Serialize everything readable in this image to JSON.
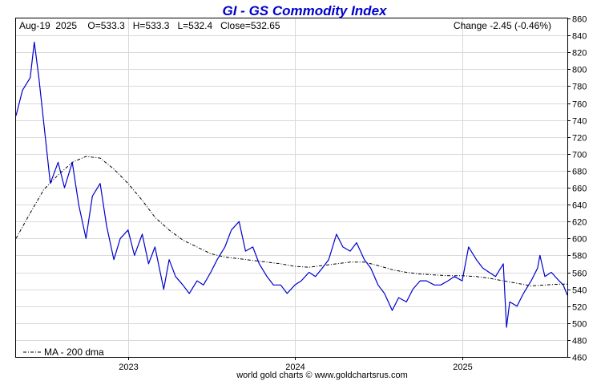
{
  "title": "GI  -  GS Commodity Index",
  "header": {
    "ohlc": "Aug-19  2025    O=533.3   H=533.3   L=532.4   Close=532.65",
    "change": "Change -2.45 (-0.46%)"
  },
  "legend": "MA - 200 dma",
  "footer": "world gold charts © www.goldchartsrus.com",
  "colors": {
    "title": "#0000cc",
    "price_line": "#0000cc",
    "ma_line": "#000000",
    "grid": "#d9d9d9",
    "frame": "#000000"
  },
  "chart_data": {
    "type": "line",
    "title": "GI  -  GS Commodity Index",
    "ylim": [
      460,
      860
    ],
    "y_ticks": [
      460,
      480,
      500,
      520,
      540,
      560,
      580,
      600,
      620,
      640,
      660,
      680,
      700,
      720,
      740,
      760,
      780,
      800,
      820,
      840,
      860
    ],
    "x_range": [
      "2022-05-01",
      "2025-08-19"
    ],
    "x_ticks": [
      {
        "date": "2023-01-01",
        "label": "2023"
      },
      {
        "date": "2024-01-01",
        "label": "2024"
      },
      {
        "date": "2025-01-01",
        "label": "2025"
      }
    ],
    "grid": true,
    "legend_position": "bottom-left",
    "y_axis_position": "right",
    "series": [
      {
        "name": "GI",
        "x": [
          "2022-05-01",
          "2022-05-15",
          "2022-06-01",
          "2022-06-10",
          "2022-06-20",
          "2022-07-01",
          "2022-07-15",
          "2022-08-01",
          "2022-08-15",
          "2022-09-01",
          "2022-09-15",
          "2022-10-01",
          "2022-10-15",
          "2022-11-01",
          "2022-11-15",
          "2022-12-01",
          "2022-12-15",
          "2023-01-01",
          "2023-01-15",
          "2023-02-01",
          "2023-02-15",
          "2023-03-01",
          "2023-03-20",
          "2023-04-01",
          "2023-04-15",
          "2023-05-01",
          "2023-05-15",
          "2023-06-01",
          "2023-06-15",
          "2023-07-01",
          "2023-07-15",
          "2023-08-01",
          "2023-08-15",
          "2023-09-01",
          "2023-09-15",
          "2023-10-01",
          "2023-10-15",
          "2023-11-01",
          "2023-11-15",
          "2023-12-01",
          "2023-12-15",
          "2024-01-01",
          "2024-01-15",
          "2024-02-01",
          "2024-02-15",
          "2024-03-01",
          "2024-03-15",
          "2024-04-01",
          "2024-04-15",
          "2024-05-01",
          "2024-05-15",
          "2024-06-01",
          "2024-06-15",
          "2024-07-01",
          "2024-07-15",
          "2024-08-01",
          "2024-08-15",
          "2024-09-01",
          "2024-09-15",
          "2024-10-01",
          "2024-10-15",
          "2024-11-01",
          "2024-11-15",
          "2024-12-01",
          "2024-12-15",
          "2025-01-01",
          "2025-01-15",
          "2025-02-01",
          "2025-02-15",
          "2025-03-01",
          "2025-03-15",
          "2025-04-01",
          "2025-04-08",
          "2025-04-15",
          "2025-05-01",
          "2025-05-15",
          "2025-06-01",
          "2025-06-15",
          "2025-06-20",
          "2025-07-01",
          "2025-07-15",
          "2025-08-01",
          "2025-08-10",
          "2025-08-19"
        ],
        "values": [
          745,
          775,
          790,
          832,
          790,
          735,
          665,
          690,
          660,
          690,
          640,
          600,
          650,
          665,
          615,
          575,
          600,
          610,
          580,
          605,
          570,
          590,
          540,
          575,
          555,
          545,
          535,
          550,
          545,
          560,
          575,
          590,
          610,
          620,
          585,
          590,
          570,
          555,
          545,
          545,
          535,
          545,
          550,
          560,
          555,
          565,
          575,
          605,
          590,
          585,
          595,
          575,
          565,
          545,
          535,
          515,
          530,
          525,
          540,
          550,
          550,
          545,
          545,
          550,
          555,
          550,
          590,
          575,
          565,
          560,
          555,
          570,
          495,
          525,
          520,
          535,
          550,
          565,
          580,
          555,
          560,
          550,
          545,
          533
        ]
      },
      {
        "name": "MA - 200 dma",
        "x": [
          "2022-05-01",
          "2022-06-01",
          "2022-07-01",
          "2022-08-01",
          "2022-09-01",
          "2022-10-01",
          "2022-11-01",
          "2022-12-01",
          "2023-01-01",
          "2023-02-01",
          "2023-03-01",
          "2023-04-01",
          "2023-05-01",
          "2023-06-01",
          "2023-07-01",
          "2023-08-01",
          "2023-09-01",
          "2023-10-01",
          "2023-11-01",
          "2023-12-01",
          "2024-01-01",
          "2024-02-01",
          "2024-03-01",
          "2024-04-01",
          "2024-05-01",
          "2024-06-01",
          "2024-07-01",
          "2024-08-01",
          "2024-09-01",
          "2024-10-01",
          "2024-11-01",
          "2024-12-01",
          "2025-01-01",
          "2025-02-01",
          "2025-03-01",
          "2025-04-01",
          "2025-05-01",
          "2025-06-01",
          "2025-07-01",
          "2025-08-01",
          "2025-08-19"
        ],
        "values": [
          600,
          630,
          658,
          675,
          690,
          697,
          695,
          682,
          665,
          645,
          625,
          610,
          598,
          590,
          582,
          578,
          576,
          574,
          572,
          570,
          567,
          566,
          568,
          570,
          572,
          572,
          568,
          563,
          560,
          558,
          557,
          556,
          556,
          555,
          553,
          550,
          547,
          544,
          545,
          546,
          546
        ]
      }
    ]
  }
}
